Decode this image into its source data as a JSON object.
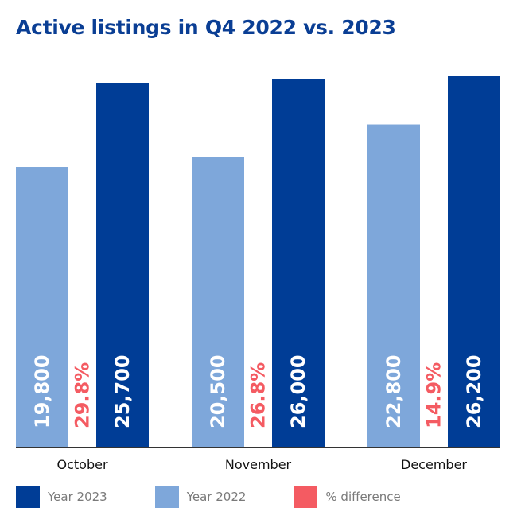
{
  "chart_data": {
    "type": "bar",
    "title": "Active listings in Q4 2022 vs. 2023",
    "categories": [
      "October",
      "November",
      "December"
    ],
    "series": [
      {
        "name": "Year 2022",
        "values": [
          19800,
          20500,
          22800
        ],
        "labels": [
          "19,800",
          "20,500",
          "22,800"
        ],
        "color": "#7ea7da"
      },
      {
        "name": "Year 2023",
        "values": [
          25700,
          26000,
          26200
        ],
        "labels": [
          "25,700",
          "26,000",
          "26,200"
        ],
        "color": "#003d96"
      }
    ],
    "pct_difference": {
      "name": "% difference",
      "labels": [
        "29.8%",
        "26.8%",
        "14.9%"
      ],
      "color": "#f45b62"
    },
    "ylim": [
      0,
      26700
    ],
    "grid": false,
    "legend_position": "bottom",
    "legend": [
      {
        "label": "Year 2023",
        "color": "#003d96"
      },
      {
        "label": "Year 2022",
        "color": "#7ea7da"
      },
      {
        "label": "% difference",
        "color": "#f45b62"
      }
    ]
  }
}
